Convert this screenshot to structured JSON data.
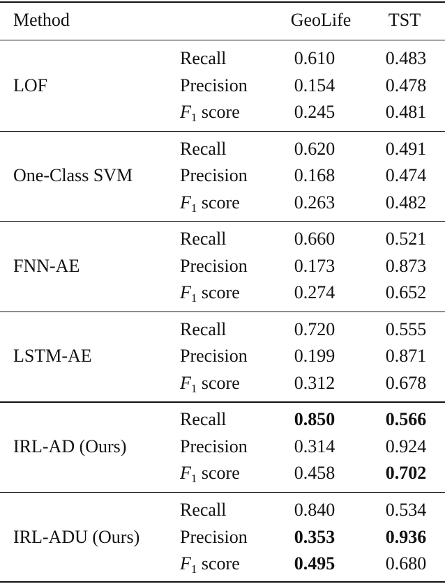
{
  "table": {
    "headers": [
      "Method",
      "",
      "GeoLife",
      "TST"
    ],
    "groups": [
      {
        "method": "LOF",
        "rows": [
          {
            "metric": "Recall",
            "geolife": "0.610",
            "tst": "0.483",
            "geolife_bold": false,
            "tst_bold": false
          },
          {
            "metric": "Precision",
            "geolife": "0.154",
            "tst": "0.478",
            "geolife_bold": false,
            "tst_bold": false
          },
          {
            "metric": "F1 score",
            "geolife": "0.245",
            "tst": "0.481",
            "geolife_bold": false,
            "tst_bold": false
          }
        ]
      },
      {
        "method": "One-Class SVM",
        "rows": [
          {
            "metric": "Recall",
            "geolife": "0.620",
            "tst": "0.491",
            "geolife_bold": false,
            "tst_bold": false
          },
          {
            "metric": "Precision",
            "geolife": "0.168",
            "tst": "0.474",
            "geolife_bold": false,
            "tst_bold": false
          },
          {
            "metric": "F1 score",
            "geolife": "0.263",
            "tst": "0.482",
            "geolife_bold": false,
            "tst_bold": false
          }
        ]
      },
      {
        "method": "FNN-AE",
        "rows": [
          {
            "metric": "Recall",
            "geolife": "0.660",
            "tst": "0.521",
            "geolife_bold": false,
            "tst_bold": false
          },
          {
            "metric": "Precision",
            "geolife": "0.173",
            "tst": "0.873",
            "geolife_bold": false,
            "tst_bold": false
          },
          {
            "metric": "F1 score",
            "geolife": "0.274",
            "tst": "0.652",
            "geolife_bold": false,
            "tst_bold": false
          }
        ]
      },
      {
        "method": "LSTM-AE",
        "rows": [
          {
            "metric": "Recall",
            "geolife": "0.720",
            "tst": "0.555",
            "geolife_bold": false,
            "tst_bold": false
          },
          {
            "metric": "Precision",
            "geolife": "0.199",
            "tst": "0.871",
            "geolife_bold": false,
            "tst_bold": false
          },
          {
            "metric": "F1 score",
            "geolife": "0.312",
            "tst": "0.678",
            "geolife_bold": false,
            "tst_bold": false
          }
        ]
      },
      {
        "method": "IRL-AD (Ours)",
        "rows": [
          {
            "metric": "Recall",
            "geolife": "0.850",
            "tst": "0.566",
            "geolife_bold": true,
            "tst_bold": true
          },
          {
            "metric": "Precision",
            "geolife": "0.314",
            "tst": "0.924",
            "geolife_bold": false,
            "tst_bold": false
          },
          {
            "metric": "F1 score",
            "geolife": "0.458",
            "tst": "0.702",
            "geolife_bold": false,
            "tst_bold": true
          }
        ]
      },
      {
        "method": "IRL-ADU (Ours)",
        "rows": [
          {
            "metric": "Recall",
            "geolife": "0.840",
            "tst": "0.534",
            "geolife_bold": false,
            "tst_bold": false
          },
          {
            "metric": "Precision",
            "geolife": "0.353",
            "tst": "0.936",
            "geolife_bold": true,
            "tst_bold": true
          },
          {
            "metric": "F1 score",
            "geolife": "0.495",
            "tst": "0.680",
            "geolife_bold": true,
            "tst_bold": false
          }
        ]
      }
    ]
  }
}
